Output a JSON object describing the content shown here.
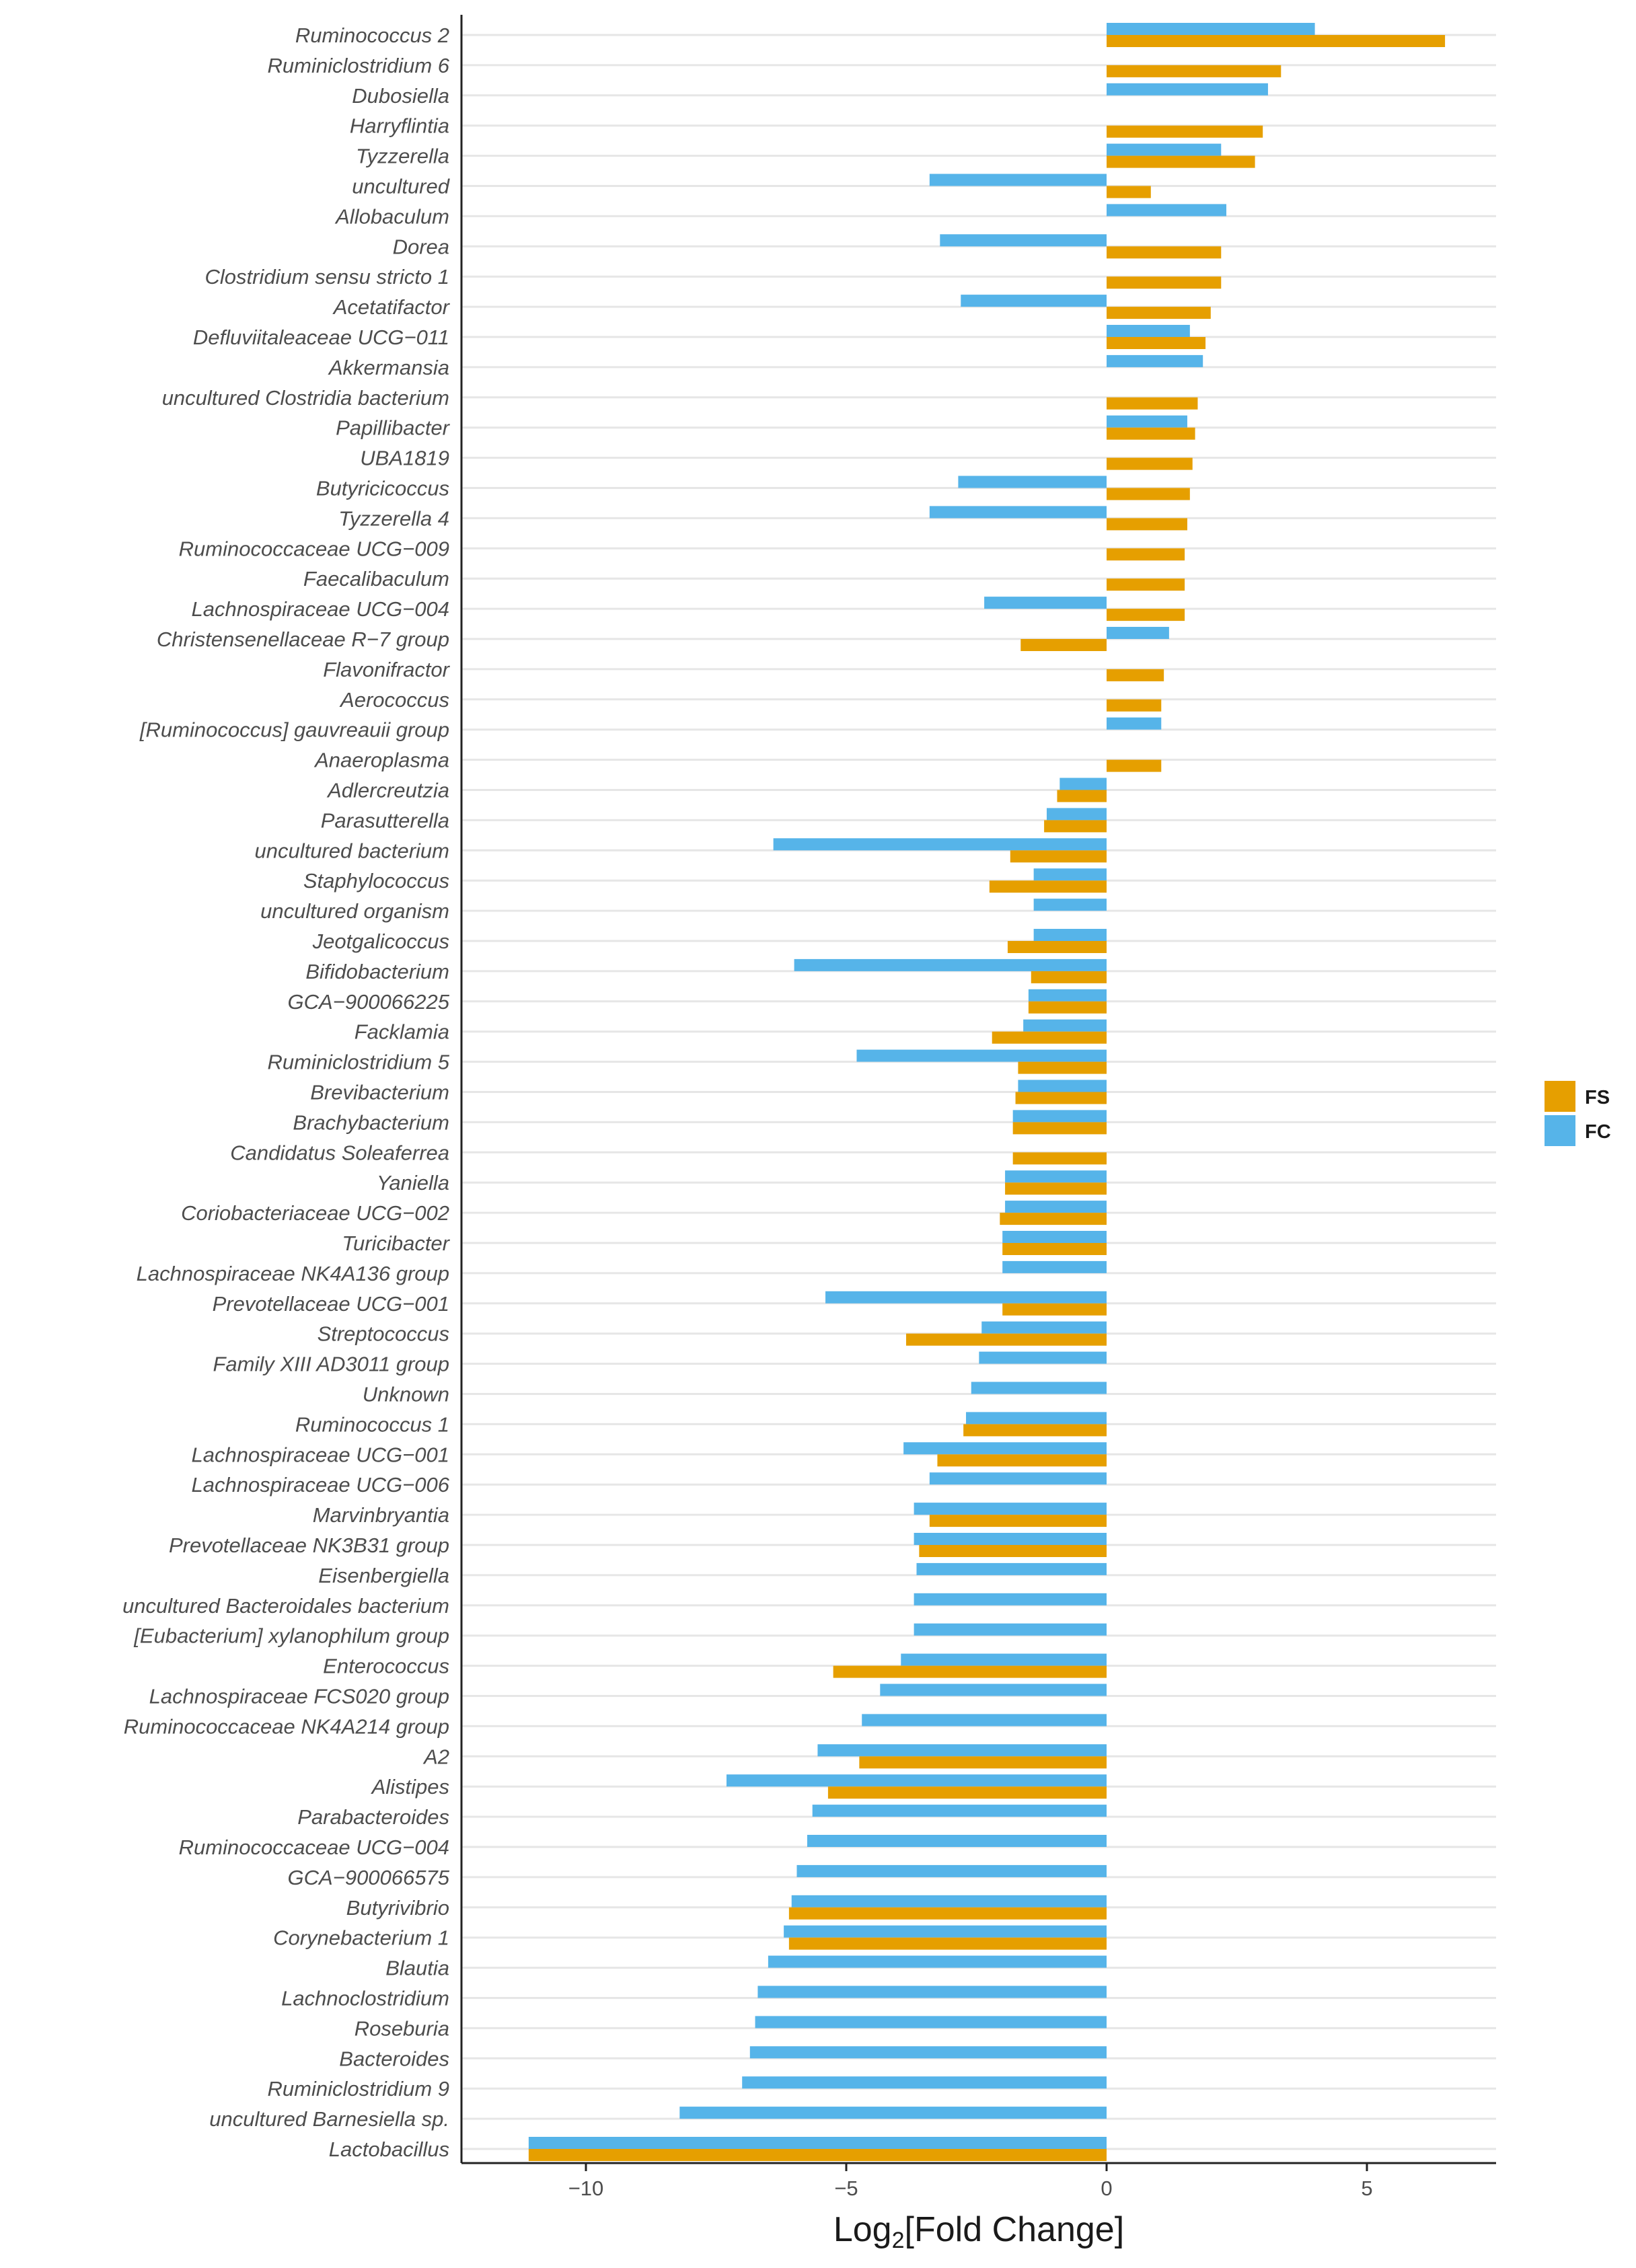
{
  "chart_data": {
    "type": "bar",
    "orientation": "horizontal",
    "title": "",
    "xlabel_base": "Log",
    "xlabel_sub": "2",
    "xlabel_rest": "[Fold Change]",
    "ylabel": "",
    "xlim": [
      -12.5,
      7.3
    ],
    "xticks": [
      -10,
      -5,
      0,
      5
    ],
    "xtick_labels": [
      "−10",
      "−5",
      "0",
      "5"
    ],
    "grid": "horizontal",
    "legend_position": "right",
    "colors": {
      "FS": "#E69F00",
      "FC": "#56B4E9"
    },
    "categories": [
      "Ruminococcus 2",
      "Ruminiclostridium 6",
      "Dubosiella",
      "Harryflintia",
      "Tyzzerella",
      "uncultured",
      "Allobaculum",
      "Dorea",
      "Clostridium sensu stricto 1",
      "Acetatifactor",
      "Defluviitaleaceae UCG−011",
      "Akkermansia",
      "uncultured Clostridia bacterium",
      "Papillibacter",
      "UBA1819",
      "Butyricicoccus",
      "Tyzzerella 4",
      "Ruminococcaceae UCG−009",
      "Faecalibaculum",
      "Lachnospiraceae UCG−004",
      "Christensenellaceae R−7 group",
      "Flavonifractor",
      "Aerococcus",
      "[Ruminococcus] gauvreauii group",
      "Anaeroplasma",
      "Adlercreutzia",
      "Parasutterella",
      "uncultured bacterium",
      "Staphylococcus",
      "uncultured organism",
      "Jeotgalicoccus",
      "Bifidobacterium",
      "GCA−900066225",
      "Facklamia",
      "Ruminiclostridium 5",
      "Brevibacterium",
      "Brachybacterium",
      "Candidatus Soleaferrea",
      "Yaniella",
      "Coriobacteriaceae UCG−002",
      "Turicibacter",
      "Lachnospiraceae NK4A136 group",
      "Prevotellaceae UCG−001",
      "Streptococcus",
      "Family XIII AD3011 group",
      "Unknown",
      "Ruminococcus 1",
      "Lachnospiraceae UCG−001",
      "Lachnospiraceae UCG−006",
      "Marvinbryantia",
      "Prevotellaceae NK3B31 group",
      "Eisenbergiella",
      "uncultured Bacteroidales bacterium",
      "[Eubacterium] xylanophilum group",
      "Enterococcus",
      "Lachnospiraceae FCS020 group",
      "Ruminococcaceae NK4A214 group",
      "A2",
      "Alistipes",
      "Parabacteroides",
      "Ruminococcaceae UCG−004",
      "GCA−900066575",
      "Butyrivibrio",
      "Corynebacterium 1",
      "Blautia",
      "Lachnoclostridium",
      "Roseburia",
      "Bacteroides",
      "Ruminiclostridium 9",
      "uncultured Barnesiella sp.",
      "Lactobacillus"
    ],
    "series": [
      {
        "name": "FC",
        "values": [
          4.0,
          null,
          3.1,
          null,
          2.2,
          -3.4,
          2.3,
          -3.2,
          null,
          -2.8,
          1.6,
          1.85,
          null,
          1.55,
          null,
          -2.85,
          -3.4,
          null,
          null,
          -2.35,
          1.2,
          null,
          null,
          1.05,
          null,
          -0.9,
          -1.15,
          -6.4,
          -1.4,
          -1.4,
          -1.4,
          -6.0,
          -1.5,
          -1.6,
          -4.8,
          -1.7,
          -1.8,
          null,
          -1.95,
          -1.95,
          -2.0,
          -2.0,
          -5.4,
          -2.4,
          -2.45,
          -2.6,
          -2.7,
          -3.9,
          -3.4,
          -3.7,
          -3.7,
          -3.65,
          -3.7,
          -3.7,
          -3.95,
          -4.35,
          -4.7,
          -5.55,
          -7.3,
          -5.65,
          -5.75,
          -5.95,
          -6.05,
          -6.2,
          -6.5,
          -6.7,
          -6.75,
          -6.85,
          -7.0,
          -8.2,
          -11.1
        ]
      },
      {
        "name": "FS",
        "values": [
          6.5,
          3.35,
          null,
          3.0,
          2.85,
          0.85,
          null,
          2.2,
          2.2,
          2.0,
          1.9,
          null,
          1.75,
          1.7,
          1.65,
          1.6,
          1.55,
          1.5,
          1.5,
          1.5,
          -1.65,
          1.1,
          1.05,
          null,
          1.05,
          -0.95,
          -1.2,
          -1.85,
          -2.25,
          null,
          -1.9,
          -1.45,
          -1.5,
          -2.2,
          -1.7,
          -1.75,
          -1.8,
          -1.8,
          -1.95,
          -2.05,
          -2.0,
          null,
          -2.0,
          -3.85,
          null,
          null,
          -2.75,
          -3.25,
          null,
          -3.4,
          -3.6,
          null,
          null,
          null,
          -5.25,
          null,
          null,
          -4.75,
          -5.35,
          null,
          null,
          null,
          -6.1,
          -6.1,
          null,
          null,
          null,
          null,
          null,
          null,
          -11.1
        ]
      }
    ]
  }
}
